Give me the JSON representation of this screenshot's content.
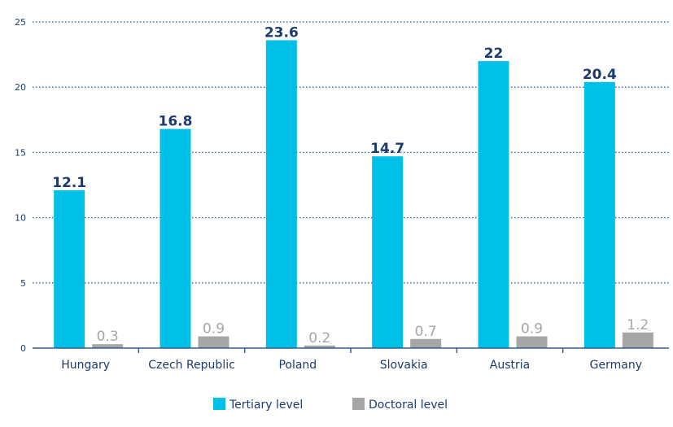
{
  "chart_data": {
    "type": "bar",
    "categories": [
      "Hungary",
      "Czech Republic",
      "Poland",
      "Slovakia",
      "Austria",
      "Germany"
    ],
    "series": [
      {
        "name": "Tertiary level",
        "values": [
          12.1,
          16.8,
          23.6,
          14.7,
          22,
          20.4
        ],
        "color": "#00c0e8"
      },
      {
        "name": "Doctoral level",
        "values": [
          0.3,
          0.9,
          0.2,
          0.7,
          0.9,
          1.2
        ],
        "color": "#a6a6a6"
      }
    ],
    "value_labels": {
      "Tertiary level": [
        "12.1",
        "16.8",
        "23.6",
        "14.7",
        "22",
        "20.4"
      ],
      "Doctoral level": [
        "0.3",
        "0.9",
        "0.2",
        "0.7",
        "0.9",
        "1.2"
      ]
    },
    "ylim": [
      0,
      25
    ],
    "yticks": [
      0,
      5,
      10,
      15,
      20,
      25
    ],
    "ytick_labels": [
      "0",
      "5",
      "10",
      "15",
      "20",
      "25"
    ],
    "grid": "horizontal dotted",
    "legend_position": "bottom-center",
    "title": "",
    "xlabel": "",
    "ylabel": ""
  },
  "colors": {
    "text": "#1d3a6e",
    "grid": "#2f5f94",
    "axis": "#2f5f94"
  }
}
